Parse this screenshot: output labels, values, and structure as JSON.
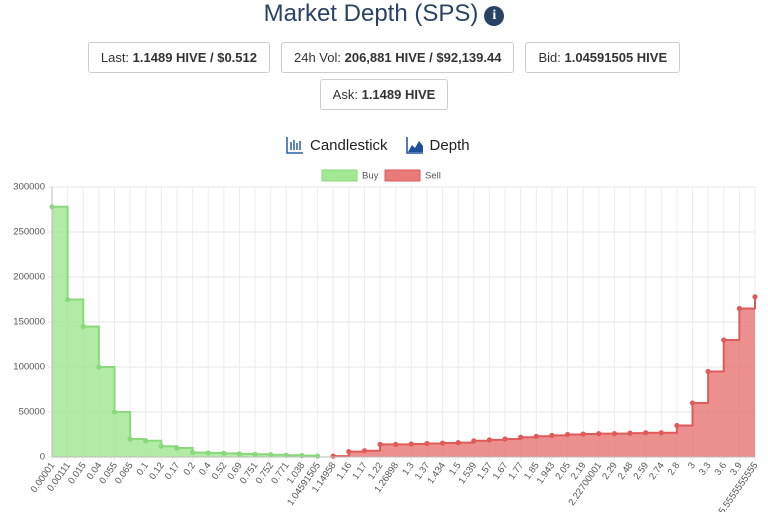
{
  "header": {
    "title": "Market Depth (SPS)"
  },
  "stats": [
    {
      "label": "Last:",
      "value": "1.1489 HIVE / $0.512"
    },
    {
      "label": "24h Vol:",
      "value": "206,881 HIVE / $92,139.44"
    },
    {
      "label": "Bid:",
      "value": "1.04591505 HIVE"
    },
    {
      "label": "Ask:",
      "value": "1.1489 HIVE"
    }
  ],
  "tabs": [
    "Candlestick",
    "Depth"
  ],
  "chart_data": {
    "type": "line",
    "stepped": true,
    "grid": true,
    "categories": [
      "0.00001",
      "0.00111",
      "0.015",
      "0.04",
      "0.055",
      "0.065",
      "0.1",
      "0.12",
      "0.17",
      "0.2",
      "0.4",
      "0.52",
      "0.69",
      "0.751",
      "0.752",
      "0.771",
      "1.038",
      "1.04591505",
      "1.14958",
      "1.16",
      "1.17",
      "1.22",
      "1.26898",
      "1.3",
      "1.37",
      "1.434",
      "1.5",
      "1.539",
      "1.57",
      "1.67",
      "1.77",
      "1.85",
      "1.943",
      "2.05",
      "2.19",
      "2.22700001",
      "2.29",
      "2.48",
      "2.59",
      "2.74",
      "2.8",
      "3",
      "3.3",
      "3.6",
      "3.9",
      "5.5555555555"
    ],
    "series": [
      {
        "name": "Buy",
        "color": "#a3e896",
        "border": "#88d97a",
        "values": [
          278000,
          175000,
          145000,
          100000,
          50000,
          20000,
          18000,
          12000,
          10000,
          5000,
          4500,
          4000,
          3500,
          3000,
          2500,
          2000,
          1500,
          1000,
          null,
          null,
          null,
          null,
          null,
          null,
          null,
          null,
          null,
          null,
          null,
          null,
          null,
          null,
          null,
          null,
          null,
          null,
          null,
          null,
          null,
          null,
          null,
          null,
          null,
          null,
          null,
          null
        ]
      },
      {
        "name": "Sell",
        "color": "#e97b7b",
        "border": "#e05a5a",
        "values": [
          null,
          null,
          null,
          null,
          null,
          null,
          null,
          null,
          null,
          null,
          null,
          null,
          null,
          null,
          null,
          null,
          null,
          null,
          1000,
          6000,
          7000,
          14000,
          14000,
          14500,
          15000,
          15500,
          16000,
          18000,
          19000,
          20000,
          22000,
          23000,
          24000,
          25000,
          25500,
          26000,
          26000,
          26500,
          27000,
          27000,
          35000,
          60000,
          95000,
          130000,
          165000,
          178000
        ]
      }
    ],
    "ylim": [
      0,
      300000
    ],
    "yticks": [
      0,
      50000,
      100000,
      150000,
      200000,
      250000,
      300000
    ]
  }
}
